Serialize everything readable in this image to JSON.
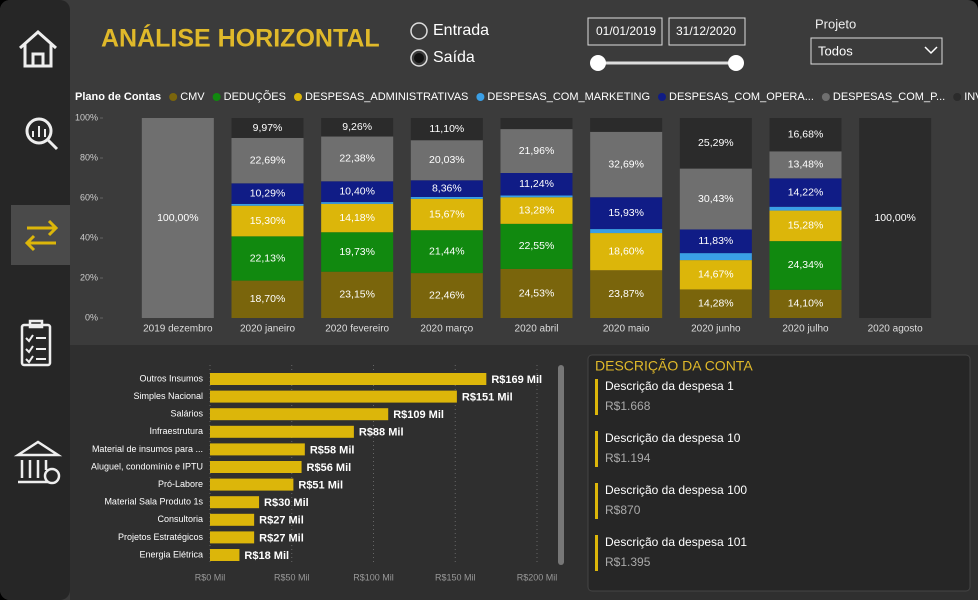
{
  "title": "ANÁLISE HORIZONTAL",
  "radio": {
    "options": [
      "Entrada",
      "Saída"
    ],
    "selected": 1
  },
  "dates": [
    "01/01/2019",
    "31/12/2020"
  ],
  "projeto": {
    "label": "Projeto",
    "value": "Todos"
  },
  "chart_data": [
    {
      "type": "stacked-bar",
      "legend_title": "Plano de Contas",
      "categories": [
        "2019 dezembro",
        "2020 janeiro",
        "2020 fevereiro",
        "2020 março",
        "2020 abril",
        "2020 maio",
        "2020 junho",
        "2020 julho",
        "2020 agosto"
      ],
      "ylim": [
        0,
        100
      ],
      "yticks": [
        {
          "value": 0,
          "label": "0%"
        },
        {
          "value": 20,
          "label": "20%"
        },
        {
          "value": 40,
          "label": "40%"
        },
        {
          "value": 60,
          "label": "60%"
        },
        {
          "value": 80,
          "label": "80%"
        },
        {
          "value": 100,
          "label": "100%"
        }
      ],
      "series": [
        {
          "name": "CMV",
          "color": "#7a650c",
          "values": [
            0,
            18.7,
            23.15,
            22.46,
            24.53,
            23.87,
            14.28,
            14.1,
            0
          ],
          "value_labels": [
            null,
            "18,70%",
            "23,15%",
            "22,46%",
            "24,53%",
            "23,87%",
            "14,28%",
            "14,10%",
            null
          ]
        },
        {
          "name": "DEDUÇÕES",
          "color": "#11890f",
          "values": [
            0,
            22.13,
            19.73,
            21.44,
            22.55,
            0,
            0,
            24.34,
            0
          ],
          "value_labels": [
            null,
            "22,13%",
            "19,73%",
            "21,44%",
            "22,55%",
            null,
            null,
            "24,34%",
            null
          ]
        },
        {
          "name": "DESPESAS_ADMINISTRATIVAS",
          "color": "#dcb60a",
          "values": [
            0,
            15.3,
            14.18,
            15.67,
            13.28,
            18.6,
            14.67,
            15.28,
            0
          ],
          "value_labels": [
            null,
            "15,30%",
            "14,18%",
            "15,67%",
            "13,28%",
            "18,60%",
            "14,67%",
            "15,28%",
            null
          ]
        },
        {
          "name": "DESPESAS_COM_MARKETING",
          "color": "#3a9fe6",
          "values": [
            0,
            0.92,
            0.9,
            0.94,
            0.9,
            2,
            3.5,
            1.9,
            0
          ]
        },
        {
          "name": "DESPESAS_COM_OPERA...",
          "color": "#101c86",
          "values": [
            0,
            10.29,
            10.4,
            8.36,
            11.24,
            15.93,
            11.83,
            14.22,
            0
          ],
          "value_labels": [
            null,
            "10,29%",
            "10,40%",
            "8,36%",
            "11,24%",
            "15,93%",
            "11,83%",
            "14,22%",
            null
          ]
        },
        {
          "name": "DESPESAS_COM_P...",
          "color": "#6f6f6f",
          "values": [
            100,
            22.69,
            22.38,
            20.03,
            21.96,
            32.69,
            30.43,
            13.48,
            0
          ],
          "value_labels": [
            "100,00%",
            "22,69%",
            "22,38%",
            "20,03%",
            "21,96%",
            "32,69%",
            "30,43%",
            "13,48%",
            null
          ]
        },
        {
          "name": "INVESTIMENTOS",
          "color": "#2b2b2b",
          "values": [
            0,
            9.97,
            9.26,
            11.1,
            5.54,
            6.9,
            25.29,
            16.68,
            100
          ],
          "value_labels": [
            null,
            "9,97%",
            "9,26%",
            "11,10%",
            null,
            null,
            "25,29%",
            "16,68%",
            "100,00%"
          ]
        }
      ]
    },
    {
      "type": "hbar",
      "categories": [
        "Outros Insumos",
        "Simples Nacional",
        "Salários",
        "Infraestrutura",
        "Material de insumos para ...",
        "Aluguel, condomínio e IPTU",
        "Pró-Labore",
        "Material Sala Produto 1s",
        "Consultoria",
        "Projetos Estratégicos",
        "Energia Elétrica"
      ],
      "values": [
        169,
        151,
        109,
        88,
        58,
        56,
        51,
        30,
        27,
        27,
        18
      ],
      "value_labels": [
        "R$169 Mil",
        "R$151 Mil",
        "R$109 Mil",
        "R$88 Mil",
        "R$58 Mil",
        "R$56 Mil",
        "R$51 Mil",
        "R$30 Mil",
        "R$27 Mil",
        "R$27 Mil",
        "R$18 Mil"
      ],
      "color": "#dcb60a",
      "xlim": [
        0,
        200
      ],
      "xticks": [
        {
          "value": 0,
          "label": "R$0 Mil"
        },
        {
          "value": 50,
          "label": "R$50 Mil"
        },
        {
          "value": 100,
          "label": "R$100 Mil"
        },
        {
          "value": 150,
          "label": "R$150 Mil"
        },
        {
          "value": 200,
          "label": "R$200 Mil"
        }
      ],
      "grid": true
    }
  ],
  "description": {
    "title": "DESCRIÇÃO DA CONTA",
    "items": [
      {
        "name": "Descrição da despesa 1",
        "value": "R$1.668"
      },
      {
        "name": "Descrição da despesa 10",
        "value": "R$1.194"
      },
      {
        "name": "Descrição da despesa 100",
        "value": "R$870"
      },
      {
        "name": "Descrição da despesa 101",
        "value": "R$1.395"
      }
    ]
  }
}
